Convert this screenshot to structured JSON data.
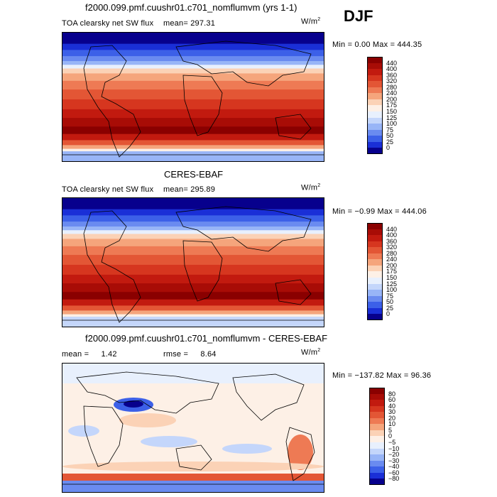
{
  "season": "DJF",
  "colors": {
    "sw": [
      "#07008d",
      "#1a2fd7",
      "#3c60e8",
      "#6a8bf0",
      "#98b5f7",
      "#c4d6fb",
      "#e8f0fd",
      "#fdf0e6",
      "#fbd2b6",
      "#f5a57c",
      "#ee7a54",
      "#e35635",
      "#d6361f",
      "#c21a0f",
      "#a80c06",
      "#8a0000"
    ],
    "diff": [
      "#07008d",
      "#1a2fd7",
      "#3c60e8",
      "#6a8bf0",
      "#98b5f7",
      "#c4d6fb",
      "#e8f0fd",
      "#fdf0e6",
      "#fbd2b6",
      "#f5a57c",
      "#ee7a54",
      "#e35635",
      "#d6361f",
      "#c21a0f",
      "#a80c06",
      "#8a0000"
    ]
  },
  "panels": [
    {
      "title": "f2000.099.pmf.cuushr01.c701_nomflumvm (yrs 1-1)",
      "subtitle": "TOA clearsky net SW flux",
      "mean_label": "mean=",
      "mean_value": "297.31",
      "units": "W/m",
      "units_exp": "2",
      "minmax": "Min =   0.00 Max = 444.35",
      "ticks": [
        "440",
        "400",
        "360",
        "320",
        "280",
        "240",
        "200",
        "175",
        "150",
        "125",
        "100",
        "75",
        "50",
        "25",
        "0"
      ]
    },
    {
      "title": "CERES-EBAF",
      "subtitle": "TOA clearsky net SW flux",
      "mean_label": "mean=",
      "mean_value": "295.89",
      "units": "W/m",
      "units_exp": "2",
      "minmax": "Min =  −0.99 Max = 444.06",
      "ticks": [
        "440",
        "400",
        "360",
        "320",
        "280",
        "240",
        "200",
        "175",
        "150",
        "125",
        "100",
        "75",
        "50",
        "25",
        "0"
      ]
    },
    {
      "title": "f2000.099.pmf.cuushr01.c701_nomflumvm - CERES-EBAF",
      "mean_label": "mean =",
      "mean_value": "1.42",
      "rmse_label": "rmse =",
      "rmse_value": "8.64",
      "units": "W/m",
      "units_exp": "2",
      "minmax": "Min = −137.82 Max =  96.36",
      "ticks": [
        "80",
        "60",
        "40",
        "30",
        "20",
        "10",
        "5",
        "0",
        "−5",
        "−10",
        "−20",
        "−30",
        "−40",
        "−60",
        "−80"
      ]
    }
  ]
}
